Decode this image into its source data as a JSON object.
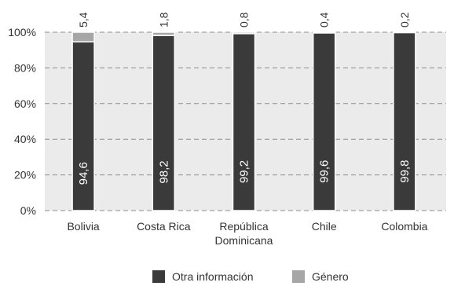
{
  "chart_data": {
    "type": "bar",
    "stacked": true,
    "categories": [
      "Bolivia",
      "Costa Rica",
      "República Dominicana",
      "Chile",
      "Colombia"
    ],
    "category_lines": [
      [
        "Bolivia"
      ],
      [
        "Costa Rica"
      ],
      [
        "República",
        "Dominicana"
      ],
      [
        "Chile"
      ],
      [
        "Colombia"
      ]
    ],
    "series": [
      {
        "name": "Otra información",
        "values": [
          94.6,
          98.2,
          99.2,
          99.6,
          99.8
        ],
        "labels": [
          "94,6",
          "98,2",
          "99,2",
          "99,6",
          "99,8"
        ],
        "color": "#3a3a3a"
      },
      {
        "name": "Género",
        "values": [
          5.4,
          1.8,
          0.8,
          0.4,
          0.2
        ],
        "labels": [
          "5,4",
          "1,8",
          "0,8",
          "0,4",
          "0,2"
        ],
        "color": "#a6a6a6"
      }
    ],
    "yticks": [
      "0%",
      "20%",
      "40%",
      "60%",
      "80%",
      "100%"
    ],
    "ylim": [
      0,
      100
    ],
    "grid": true,
    "legend": "bottom",
    "background": "#ebebeb"
  }
}
